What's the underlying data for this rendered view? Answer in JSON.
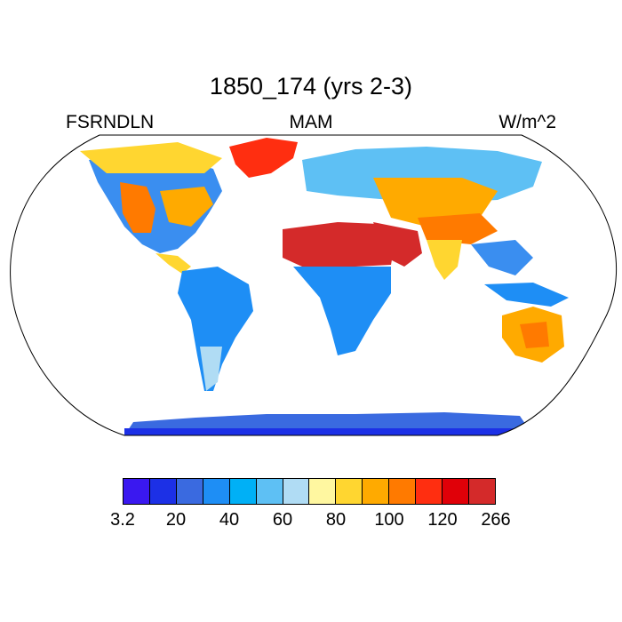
{
  "title": "1850_174 (yrs 2-3)",
  "left_label": "FSRNDLN",
  "center_label": "MAM",
  "right_label": "W/m^2",
  "colorbar": {
    "colors": [
      "#3a18f0",
      "#1c30e6",
      "#3a6ae0",
      "#1e8ef5",
      "#00b0f6",
      "#5ec0f4",
      "#b0dcf4",
      "#fff7a0",
      "#ffd630",
      "#ffaa00",
      "#ff7a00",
      "#ff2e10",
      "#e00008",
      "#d42a2a"
    ],
    "tick_labels": [
      "3.2",
      "20",
      "40",
      "60",
      "80",
      "100",
      "120",
      "266"
    ]
  },
  "chart_data": {
    "type": "heatmap",
    "title": "1850_174 (yrs 2-3)",
    "variable": "FSRNDLN",
    "season": "MAM",
    "units": "W/m^2",
    "colorbar_ticks": [
      "3.2",
      "20",
      "40",
      "60",
      "80",
      "100",
      "120",
      "266"
    ],
    "levels_count": 14
  }
}
